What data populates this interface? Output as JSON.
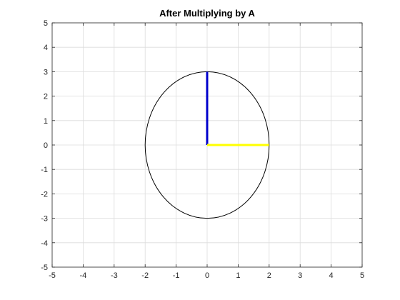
{
  "chart_data": {
    "type": "line",
    "title": "After Multiplying by A",
    "xlabel": "",
    "ylabel": "",
    "xlim": [
      -5,
      5
    ],
    "ylim": [
      -5,
      5
    ],
    "grid": true,
    "x_ticks": [
      -5,
      -4,
      -3,
      -2,
      -1,
      0,
      1,
      2,
      3,
      4,
      5
    ],
    "y_ticks": [
      -5,
      -4,
      -3,
      -2,
      -1,
      0,
      1,
      2,
      3,
      4,
      5
    ],
    "series": [
      {
        "shape": "ellipse",
        "center": [
          0,
          0
        ],
        "semi_axis_x": 2,
        "semi_axis_y": 3,
        "color": "#000000"
      },
      {
        "shape": "segment",
        "x": [
          0,
          0
        ],
        "y": [
          0,
          3
        ],
        "color": "#0000cc"
      },
      {
        "shape": "segment",
        "x": [
          0,
          2
        ],
        "y": [
          0,
          0
        ],
        "color": "#ffff00"
      }
    ]
  }
}
